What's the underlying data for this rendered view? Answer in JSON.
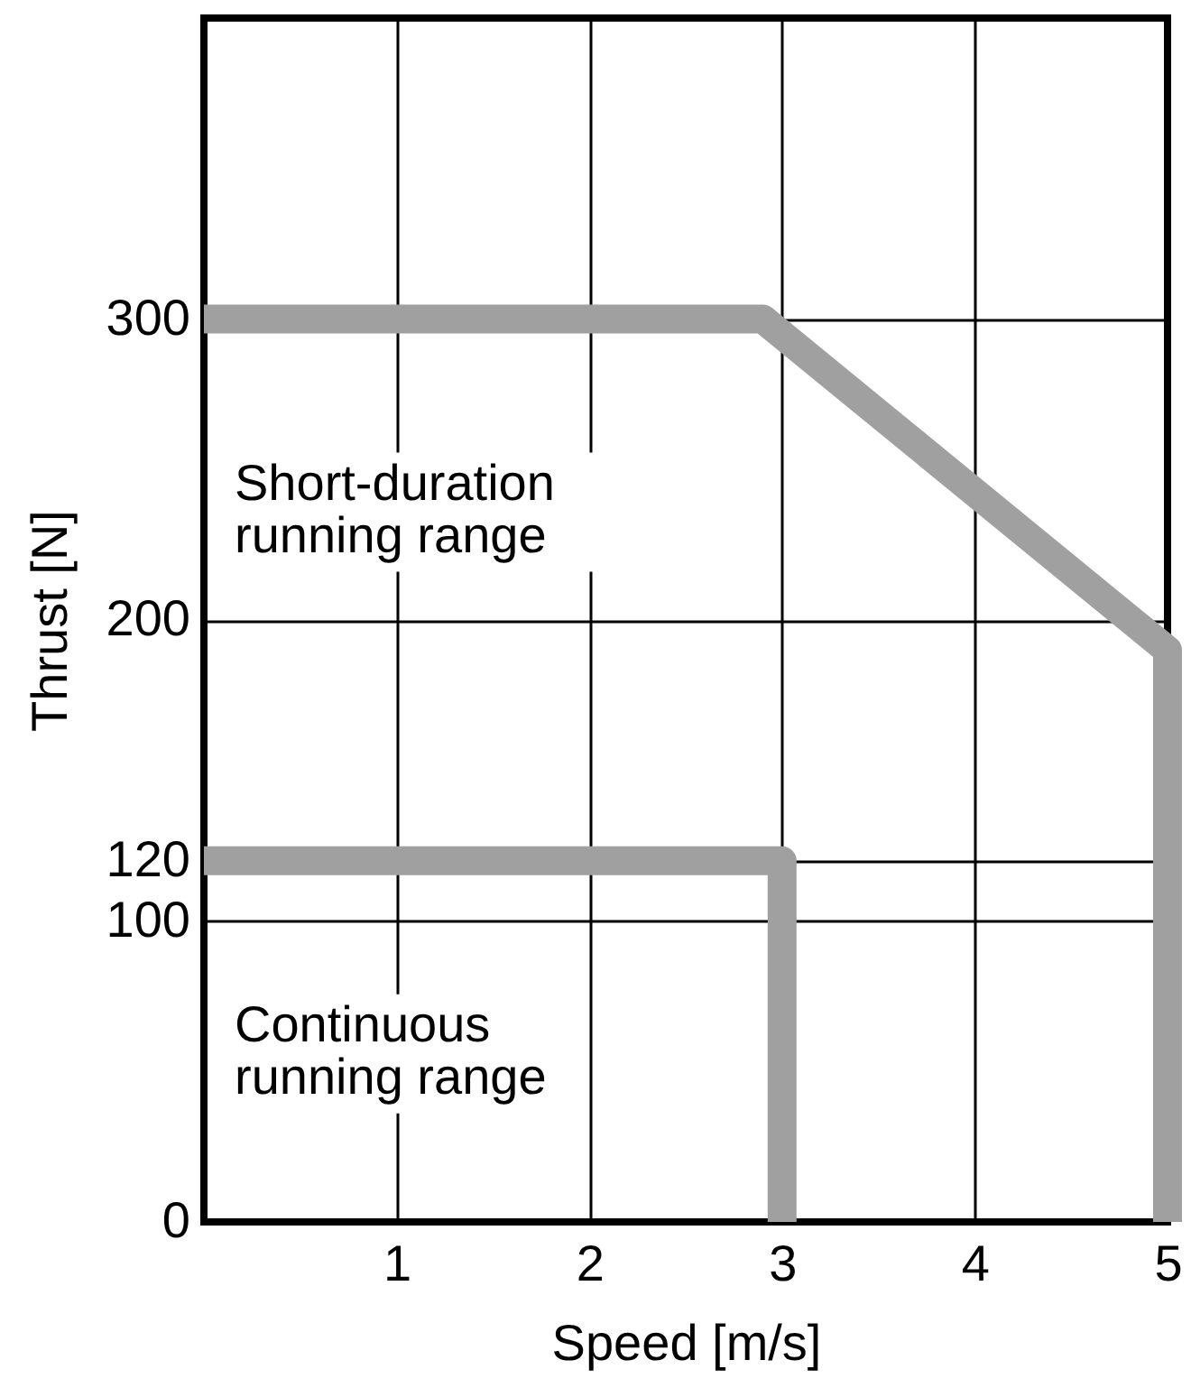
{
  "chart_data": {
    "type": "line",
    "xlabel": "Speed [m/s]",
    "ylabel": "Thrust [N]",
    "series": [
      {
        "name": "Short-duration running range",
        "color": "#a0a0a0",
        "x": [
          0,
          2.9,
          5,
          5
        ],
        "values": [
          300,
          300,
          190,
          0
        ]
      },
      {
        "name": "Continuous running range",
        "color": "#a0a0a0",
        "x": [
          0,
          3,
          3
        ],
        "values": [
          120,
          120,
          0
        ]
      }
    ],
    "xlim": [
      0,
      5
    ],
    "xticks": [
      1,
      2,
      3,
      4,
      5
    ],
    "ylim": [
      0,
      400
    ],
    "yticks": [
      0,
      100,
      120,
      200,
      300
    ],
    "grid": true,
    "marker": "none",
    "line_style": "solid"
  }
}
